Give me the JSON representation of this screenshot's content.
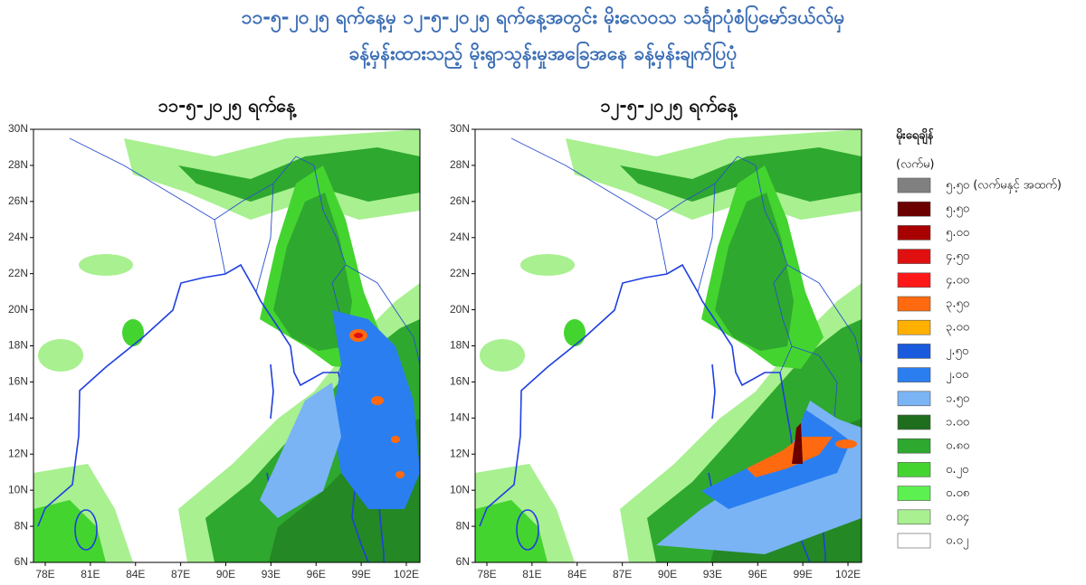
{
  "header": {
    "line1": "၁၁-၅-၂၀၂၅ ရက်နေ့မှ ၁၂-၅-၂၀၂၅ ရက်နေ့အတွင်း မိုးလေ၀သ သင်္ချာပုံစံပြမော်ဒယ်လ်မှ",
    "line2": "ခန့်မှန်းထားသည့် မိုးရွာသွန်းမှုအခြေအနေ ခန့်မှန်းချက်ပြပုံ"
  },
  "lat_labels": [
    "30N",
    "28N",
    "26N",
    "24N",
    "22N",
    "20N",
    "18N",
    "16N",
    "14N",
    "12N",
    "10N",
    "8N",
    "6N"
  ],
  "lon_labels": [
    "78E",
    "81E",
    "84E",
    "87E",
    "90E",
    "93E",
    "96E",
    "99E",
    "102E"
  ],
  "panels": [
    {
      "title": "၁၁-၅-၂၀၂၅ ရက်နေ့"
    },
    {
      "title": "၁၂-၅-၂၀၂၅ ရက်နေ့"
    }
  ],
  "legend": {
    "title": "မိုးရေချိန်",
    "unit": "(လက်မ)",
    "items": [
      {
        "label": "၅.၅၀ (လက်မနှင့် အထက်)",
        "color": "#808080"
      },
      {
        "label": "၅.၅၀",
        "color": "#6b0000"
      },
      {
        "label": "၅.၀၀",
        "color": "#a80000"
      },
      {
        "label": "၄.၅၀",
        "color": "#e01010"
      },
      {
        "label": "၄.၀၀",
        "color": "#ff1818"
      },
      {
        "label": "၃.၅၀",
        "color": "#ff6a10"
      },
      {
        "label": "၃.၀၀",
        "color": "#ffb000"
      },
      {
        "label": "၂.၅၀",
        "color": "#1a5adc"
      },
      {
        "label": "၂.၀၀",
        "color": "#2a7ef0"
      },
      {
        "label": "၁.၅၀",
        "color": "#7ab4f5"
      },
      {
        "label": "၁.၀၀",
        "color": "#1e6e1e"
      },
      {
        "label": "၀.၈၀",
        "color": "#2ea82e"
      },
      {
        "label": "၀.၂၀",
        "color": "#44d430"
      },
      {
        "label": "၀.၀၈",
        "color": "#5cf050"
      },
      {
        "label": "၀.၀၄",
        "color": "#a8f090"
      },
      {
        "label": "၀.၀၂",
        "color": "#ffffff"
      }
    ]
  }
}
